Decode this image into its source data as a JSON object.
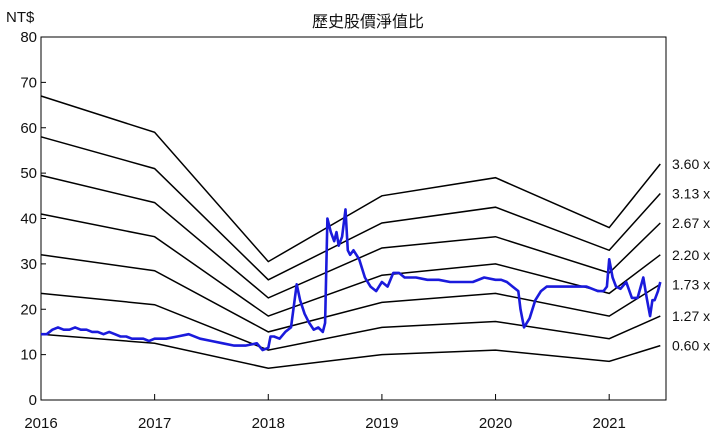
{
  "chart_data": {
    "type": "line",
    "title": "歷史股價淨值比",
    "ylabel": "NT$",
    "xlabel": "",
    "xlim": [
      2016,
      2021.5
    ],
    "ylim": [
      0,
      80
    ],
    "y_ticks": [
      0,
      10,
      20,
      30,
      40,
      50,
      60,
      70,
      80
    ],
    "x_ticks": [
      2016,
      2017,
      2018,
      2019,
      2020,
      2021
    ],
    "x_tick_labels": [
      "2016",
      "2017",
      "2018",
      "2019",
      "2020",
      "2021"
    ],
    "grid": false,
    "colors": {
      "bands": "#000000",
      "price": "#1a1adc",
      "frame": "#000000"
    },
    "bands": [
      {
        "label": "3.60 x",
        "x": [
          2016.0,
          2017.0,
          2018.0,
          2019.0,
          2020.0,
          2021.0,
          2021.45
        ],
        "y": [
          67,
          59,
          30.5,
          45,
          49,
          38,
          52
        ]
      },
      {
        "label": "3.13 x",
        "x": [
          2016.0,
          2017.0,
          2018.0,
          2019.0,
          2020.0,
          2021.0,
          2021.45
        ],
        "y": [
          58,
          51,
          26.5,
          39,
          42.5,
          33,
          45.5
        ]
      },
      {
        "label": "2.67 x",
        "x": [
          2016.0,
          2017.0,
          2018.0,
          2019.0,
          2020.0,
          2021.0,
          2021.45
        ],
        "y": [
          49.5,
          43.5,
          22.5,
          33.5,
          36,
          28,
          39
        ]
      },
      {
        "label": "2.20 x",
        "x": [
          2016.0,
          2017.0,
          2018.0,
          2019.0,
          2020.0,
          2021.0,
          2021.45
        ],
        "y": [
          41,
          36,
          18.5,
          27.5,
          30,
          23.5,
          32
        ]
      },
      {
        "label": "1.73 x",
        "x": [
          2016.0,
          2017.0,
          2018.0,
          2019.0,
          2020.0,
          2021.0,
          2021.45
        ],
        "y": [
          32,
          28.5,
          15,
          21.5,
          23.5,
          18.5,
          25.5
        ]
      },
      {
        "label": "1.27 x",
        "x": [
          2016.0,
          2017.0,
          2018.0,
          2019.0,
          2020.0,
          2021.0,
          2021.45
        ],
        "y": [
          23.5,
          21,
          11,
          16,
          17.3,
          13.5,
          18.5
        ]
      },
      {
        "label": "0.60 x",
        "x": [
          2016.0,
          2017.0,
          2018.0,
          2019.0,
          2020.0,
          2021.0,
          2021.45
        ],
        "y": [
          14.5,
          12.5,
          7,
          10,
          11,
          8.5,
          12
        ]
      }
    ],
    "series": [
      {
        "x": [
          2016.0,
          2016.05,
          2016.1,
          2016.15,
          2016.2,
          2016.25,
          2016.3,
          2016.35,
          2016.4,
          2016.45,
          2016.5,
          2016.55,
          2016.6,
          2016.65,
          2016.7,
          2016.75,
          2016.8,
          2016.85,
          2016.9,
          2016.95,
          2017.0,
          2017.1,
          2017.2,
          2017.3,
          2017.4,
          2017.5,
          2017.6,
          2017.7,
          2017.8,
          2017.9,
          2017.95,
          2018.0,
          2018.02,
          2018.05,
          2018.1,
          2018.15,
          2018.2,
          2018.25,
          2018.28,
          2018.32,
          2018.36,
          2018.4,
          2018.44,
          2018.48,
          2018.5,
          2018.52,
          2018.55,
          2018.58,
          2018.6,
          2018.62,
          2018.65,
          2018.68,
          2018.7,
          2018.72,
          2018.75,
          2018.8,
          2018.85,
          2018.9,
          2018.95,
          2019.0,
          2019.05,
          2019.1,
          2019.15,
          2019.2,
          2019.3,
          2019.4,
          2019.5,
          2019.6,
          2019.7,
          2019.8,
          2019.9,
          2020.0,
          2020.05,
          2020.1,
          2020.15,
          2020.2,
          2020.22,
          2020.25,
          2020.3,
          2020.35,
          2020.4,
          2020.45,
          2020.5,
          2020.6,
          2020.7,
          2020.8,
          2020.9,
          2020.95,
          2020.98,
          2021.0,
          2021.03,
          2021.06,
          2021.1,
          2021.15,
          2021.2,
          2021.25,
          2021.3,
          2021.33,
          2021.36,
          2021.38,
          2021.4,
          2021.43,
          2021.45
        ],
        "y": [
          14.5,
          14.5,
          15.5,
          16,
          15.5,
          15.5,
          16,
          15.5,
          15.5,
          15,
          15,
          14.5,
          15,
          14.5,
          14,
          14,
          13.5,
          13.5,
          13.5,
          13,
          13.5,
          13.5,
          14,
          14.5,
          13.5,
          13,
          12.5,
          12,
          12,
          12.5,
          11,
          11.5,
          14,
          14,
          13.5,
          15,
          16,
          25.5,
          22,
          19,
          17,
          15.5,
          16,
          15,
          17,
          40,
          37,
          35,
          37,
          34,
          36,
          42,
          33,
          32,
          33,
          31,
          27,
          25,
          24,
          26,
          25,
          28,
          28,
          27,
          27,
          26.5,
          26.5,
          26,
          26,
          26,
          27,
          26.5,
          26.5,
          26,
          25,
          24,
          20,
          16,
          18,
          22,
          24,
          25,
          25,
          25,
          25,
          25,
          24,
          24,
          25,
          31,
          27,
          25,
          24.5,
          26,
          22.5,
          22.5,
          27,
          22.5,
          18.5,
          22,
          22,
          24,
          26
        ]
      }
    ]
  }
}
